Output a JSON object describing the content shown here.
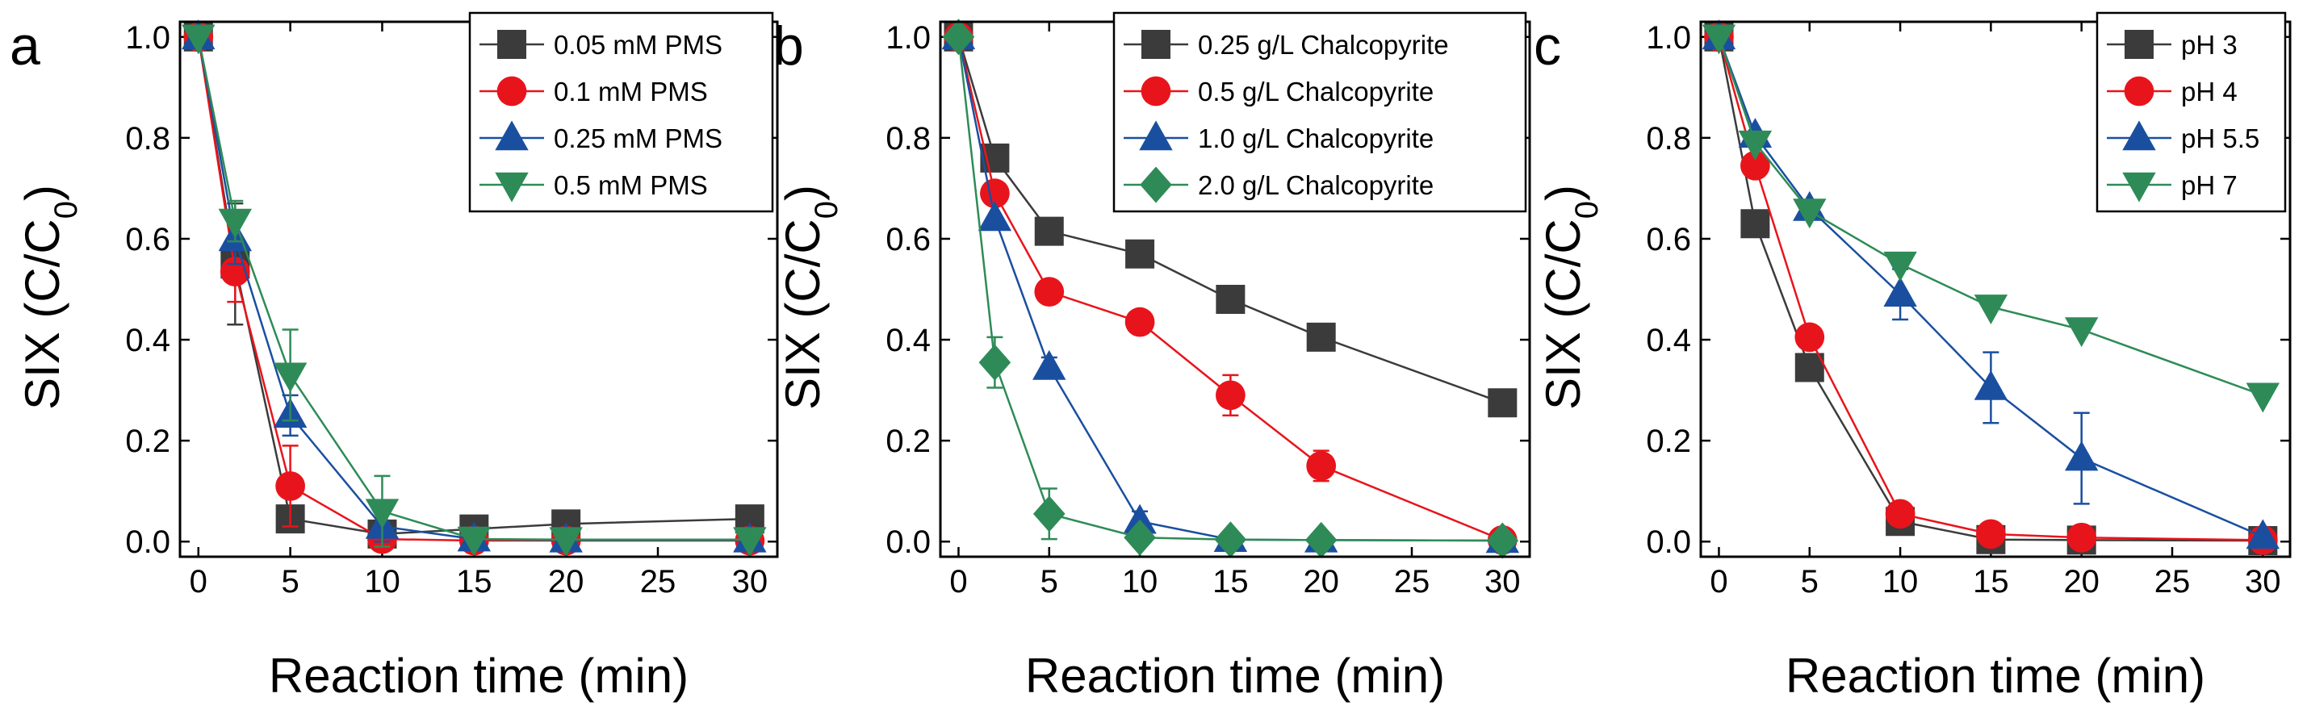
{
  "chart_data": [
    {
      "type": "line",
      "panel_label": "a",
      "xlabel": "Reaction time (min)",
      "ylabel": "SIX (C/C0)",
      "ylabel_parts": {
        "main": "SIX (C/C",
        "sub": "0",
        "close": ")"
      },
      "xlim": [
        -1,
        31.5
      ],
      "ylim": [
        -0.03,
        1.03
      ],
      "xticks": [
        0,
        5,
        10,
        15,
        20,
        25,
        30
      ],
      "yticks": [
        0.0,
        0.2,
        0.4,
        0.6,
        0.8,
        1.0
      ],
      "xtick_labels": [
        "0",
        "5",
        "10",
        "15",
        "20",
        "25",
        "30"
      ],
      "ytick_labels": [
        "0.0",
        "0.2",
        "0.4",
        "0.6",
        "0.8",
        "1.0"
      ],
      "legend": "top-right",
      "grid": false,
      "series": [
        {
          "name": "0.05 mM PMS",
          "color": "#3b3b3b",
          "marker": "square",
          "x": [
            0,
            2,
            5,
            10,
            15,
            20,
            30
          ],
          "y": [
            1.0,
            0.55,
            0.045,
            0.015,
            0.025,
            0.035,
            0.045
          ],
          "err": [
            0,
            0.12,
            0.02,
            0,
            0,
            0,
            0
          ]
        },
        {
          "name": "0.1 mM PMS",
          "color": "#e8141c",
          "marker": "circle",
          "x": [
            0,
            2,
            5,
            10,
            15,
            20,
            30
          ],
          "y": [
            1.0,
            0.535,
            0.11,
            0.005,
            0.002,
            0.002,
            0.002
          ],
          "err": [
            0,
            0.06,
            0.08,
            0,
            0,
            0,
            0
          ]
        },
        {
          "name": "0.25 mM PMS",
          "color": "#1a4fa0",
          "marker": "triangle-up",
          "x": [
            0,
            2,
            5,
            10,
            15,
            20,
            30
          ],
          "y": [
            1.0,
            0.6,
            0.25,
            0.03,
            0.005,
            0.003,
            0.003
          ],
          "err": [
            0,
            0.05,
            0.04,
            0.03,
            0,
            0,
            0
          ]
        },
        {
          "name": "0.5 mM PMS",
          "color": "#2e8b57",
          "marker": "triangle-down",
          "x": [
            0,
            2,
            5,
            10,
            15,
            20,
            30
          ],
          "y": [
            1.0,
            0.635,
            0.33,
            0.06,
            0.005,
            0.004,
            0.004
          ],
          "err": [
            0,
            0.04,
            0.09,
            0.07,
            0,
            0,
            0
          ]
        }
      ]
    },
    {
      "type": "line",
      "panel_label": "b",
      "xlabel": "Reaction time (min)",
      "ylabel": "SIX (C/C0)",
      "ylabel_parts": {
        "main": "SIX (C/C",
        "sub": "0",
        "close": ")"
      },
      "xlim": [
        -1,
        31.5
      ],
      "ylim": [
        -0.03,
        1.03
      ],
      "xticks": [
        0,
        5,
        10,
        15,
        20,
        25,
        30
      ],
      "yticks": [
        0.0,
        0.2,
        0.4,
        0.6,
        0.8,
        1.0
      ],
      "xtick_labels": [
        "0",
        "5",
        "10",
        "15",
        "20",
        "25",
        "30"
      ],
      "ytick_labels": [
        "0.0",
        "0.2",
        "0.4",
        "0.6",
        "0.8",
        "1.0"
      ],
      "legend": "top-right",
      "grid": false,
      "series": [
        {
          "name": "0.25 g/L Chalcopyrite",
          "color": "#3b3b3b",
          "marker": "square",
          "x": [
            0,
            2,
            5,
            10,
            15,
            20,
            30
          ],
          "y": [
            1.0,
            0.76,
            0.615,
            0.57,
            0.48,
            0.405,
            0.275
          ],
          "err": [
            0,
            0,
            0,
            0.02,
            0.02,
            0.02,
            0.02
          ]
        },
        {
          "name": "0.5 g/L Chalcopyrite",
          "color": "#e8141c",
          "marker": "circle",
          "x": [
            0,
            2,
            5,
            10,
            15,
            20,
            30
          ],
          "y": [
            1.0,
            0.69,
            0.495,
            0.435,
            0.29,
            0.15,
            0.003
          ],
          "err": [
            0,
            0,
            0,
            0,
            0.04,
            0.03,
            0
          ]
        },
        {
          "name": "1.0 g/L Chalcopyrite",
          "color": "#1a4fa0",
          "marker": "triangle-up",
          "x": [
            0,
            2,
            5,
            10,
            15,
            20,
            30
          ],
          "y": [
            1.0,
            0.64,
            0.345,
            0.04,
            0.004,
            0.003,
            0.002
          ],
          "err": [
            0,
            0,
            0.02,
            0.02,
            0,
            0,
            0
          ]
        },
        {
          "name": "2.0 g/L Chalcopyrite",
          "color": "#2e8b57",
          "marker": "diamond",
          "x": [
            0,
            2,
            5,
            10,
            15,
            20,
            30
          ],
          "y": [
            1.0,
            0.355,
            0.055,
            0.008,
            0.004,
            0.003,
            0.002
          ],
          "err": [
            0,
            0.05,
            0.05,
            0,
            0,
            0,
            0
          ]
        }
      ]
    },
    {
      "type": "line",
      "panel_label": "c",
      "xlabel": "Reaction time (min)",
      "ylabel": "SIX (C/C0)",
      "ylabel_parts": {
        "main": "SIX (C/C",
        "sub": "0",
        "close": ")"
      },
      "xlim": [
        -1,
        31.5
      ],
      "ylim": [
        -0.03,
        1.03
      ],
      "xticks": [
        0,
        5,
        10,
        15,
        20,
        25,
        30
      ],
      "yticks": [
        0.0,
        0.2,
        0.4,
        0.6,
        0.8,
        1.0
      ],
      "xtick_labels": [
        "0",
        "5",
        "10",
        "15",
        "20",
        "25",
        "30"
      ],
      "ytick_labels": [
        "0.0",
        "0.2",
        "0.4",
        "0.6",
        "0.8",
        "1.0"
      ],
      "legend": "top-right",
      "grid": false,
      "series": [
        {
          "name": "pH 3",
          "color": "#3b3b3b",
          "marker": "square",
          "x": [
            0,
            2,
            5,
            10,
            15,
            20,
            30
          ],
          "y": [
            1.0,
            0.63,
            0.345,
            0.04,
            0.004,
            0.003,
            0.002
          ],
          "err": [
            0,
            0,
            0,
            0,
            0,
            0,
            0
          ]
        },
        {
          "name": "pH 4",
          "color": "#e8141c",
          "marker": "circle",
          "x": [
            0,
            2,
            5,
            10,
            15,
            20,
            30
          ],
          "y": [
            1.0,
            0.745,
            0.405,
            0.055,
            0.015,
            0.008,
            0.003
          ],
          "err": [
            0,
            0,
            0,
            0.02,
            0,
            0,
            0
          ]
        },
        {
          "name": "pH 5.5",
          "color": "#1a4fa0",
          "marker": "triangle-up",
          "x": [
            0,
            2,
            5,
            10,
            15,
            20,
            30
          ],
          "y": [
            1.0,
            0.805,
            0.66,
            0.49,
            0.305,
            0.165,
            0.01
          ],
          "err": [
            0,
            0,
            0,
            0.05,
            0.07,
            0.09,
            0
          ]
        },
        {
          "name": "pH 7",
          "color": "#2e8b57",
          "marker": "triangle-down",
          "x": [
            0,
            2,
            5,
            10,
            15,
            20,
            30
          ],
          "y": [
            1.0,
            0.79,
            0.655,
            0.55,
            0.465,
            0.42,
            0.29
          ],
          "err": [
            0,
            0,
            0,
            0,
            0,
            0,
            0
          ]
        }
      ]
    }
  ]
}
